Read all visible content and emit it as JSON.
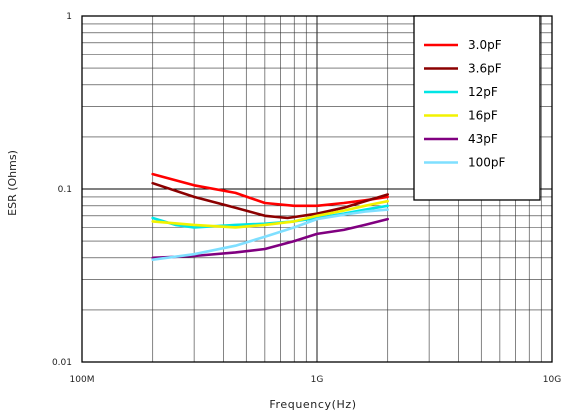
{
  "chart_data": {
    "type": "line",
    "xlabel": "Frequency(Hz)",
    "ylabel": "ESR (Ohms)",
    "x_scale": "log",
    "y_scale": "log",
    "xlim": [
      100000000,
      10000000000
    ],
    "ylim": [
      0.01,
      1
    ],
    "x_ticks": [
      {
        "value": 100000000,
        "label": "100M"
      },
      {
        "value": 1000000000,
        "label": "1G"
      },
      {
        "value": 10000000000,
        "label": "10G"
      }
    ],
    "y_ticks": [
      {
        "value": 1,
        "label": "1"
      },
      {
        "value": 0.1,
        "label": "0.1"
      },
      {
        "value": 0.01,
        "label": "0.01"
      }
    ],
    "grid": true,
    "legend_position": "top-right",
    "series": [
      {
        "name": "3.0pF",
        "color": "#ff0000",
        "points": [
          [
            200000000,
            0.122
          ],
          [
            300000000,
            0.105
          ],
          [
            450000000,
            0.095
          ],
          [
            600000000,
            0.083
          ],
          [
            800000000,
            0.08
          ],
          [
            1000000000,
            0.08
          ],
          [
            1300000000,
            0.083
          ],
          [
            1600000000,
            0.086
          ],
          [
            2000000000,
            0.09
          ]
        ]
      },
      {
        "name": "3.6pF",
        "color": "#8b0000",
        "points": [
          [
            200000000,
            0.108
          ],
          [
            300000000,
            0.09
          ],
          [
            450000000,
            0.078
          ],
          [
            600000000,
            0.07
          ],
          [
            750000000,
            0.068
          ],
          [
            1000000000,
            0.072
          ],
          [
            1300000000,
            0.078
          ],
          [
            1600000000,
            0.085
          ],
          [
            2000000000,
            0.093
          ]
        ]
      },
      {
        "name": "12pF",
        "color": "#00e5e5",
        "points": [
          [
            200000000,
            0.068
          ],
          [
            250000000,
            0.062
          ],
          [
            300000000,
            0.06
          ],
          [
            450000000,
            0.062
          ],
          [
            600000000,
            0.063
          ],
          [
            800000000,
            0.065
          ],
          [
            1000000000,
            0.068
          ],
          [
            1300000000,
            0.072
          ],
          [
            1600000000,
            0.076
          ],
          [
            2000000000,
            0.08
          ]
        ]
      },
      {
        "name": "16pF",
        "color": "#f2f200",
        "points": [
          [
            200000000,
            0.065
          ],
          [
            300000000,
            0.062
          ],
          [
            450000000,
            0.06
          ],
          [
            600000000,
            0.062
          ],
          [
            800000000,
            0.065
          ],
          [
            1000000000,
            0.07
          ],
          [
            1300000000,
            0.075
          ],
          [
            1600000000,
            0.08
          ],
          [
            2000000000,
            0.085
          ]
        ]
      },
      {
        "name": "43pF",
        "color": "#800080",
        "points": [
          [
            200000000,
            0.04
          ],
          [
            300000000,
            0.041
          ],
          [
            450000000,
            0.043
          ],
          [
            600000000,
            0.045
          ],
          [
            800000000,
            0.05
          ],
          [
            1000000000,
            0.055
          ],
          [
            1300000000,
            0.058
          ],
          [
            1600000000,
            0.062
          ],
          [
            2000000000,
            0.067
          ]
        ]
      },
      {
        "name": "100pF",
        "color": "#7fdfff",
        "points": [
          [
            200000000,
            0.039
          ],
          [
            300000000,
            0.042
          ],
          [
            450000000,
            0.047
          ],
          [
            600000000,
            0.053
          ],
          [
            800000000,
            0.06
          ],
          [
            1000000000,
            0.067
          ],
          [
            1300000000,
            0.071
          ],
          [
            1600000000,
            0.074
          ],
          [
            2000000000,
            0.076
          ]
        ]
      }
    ]
  }
}
